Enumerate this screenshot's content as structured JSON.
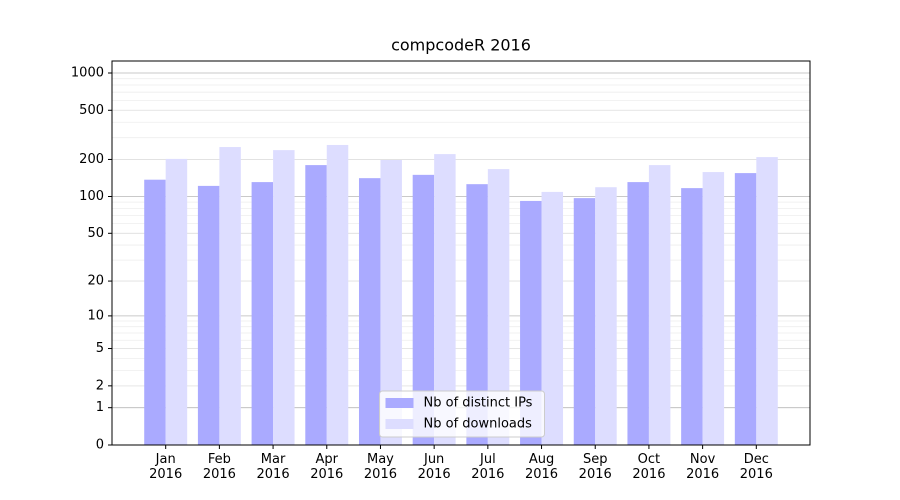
{
  "chart_data": {
    "type": "bar",
    "title": "compcodeR 2016",
    "categories": [
      "Jan\n2016",
      "Feb\n2016",
      "Mar\n2016",
      "Apr\n2016",
      "May\n2016",
      "Jun\n2016",
      "Jul\n2016",
      "Aug\n2016",
      "Sep\n2016",
      "Oct\n2016",
      "Nov\n2016",
      "Dec\n2016"
    ],
    "series": [
      {
        "name": "Nb of distinct IPs",
        "color": "#aaaaff",
        "values": [
          137,
          122,
          131,
          180,
          141,
          150,
          126,
          92,
          97,
          131,
          117,
          155
        ]
      },
      {
        "name": "Nb of downloads",
        "color": "#ddddff",
        "values": [
          202,
          252,
          238,
          262,
          198,
          221,
          167,
          109,
          119,
          180,
          158,
          209
        ]
      }
    ],
    "yscale": "log1p",
    "ylim": [
      0,
      1250
    ],
    "yticks": [
      0,
      1,
      2,
      5,
      10,
      20,
      50,
      100,
      200,
      500,
      1000
    ],
    "grid": true,
    "legend": "lower center"
  }
}
